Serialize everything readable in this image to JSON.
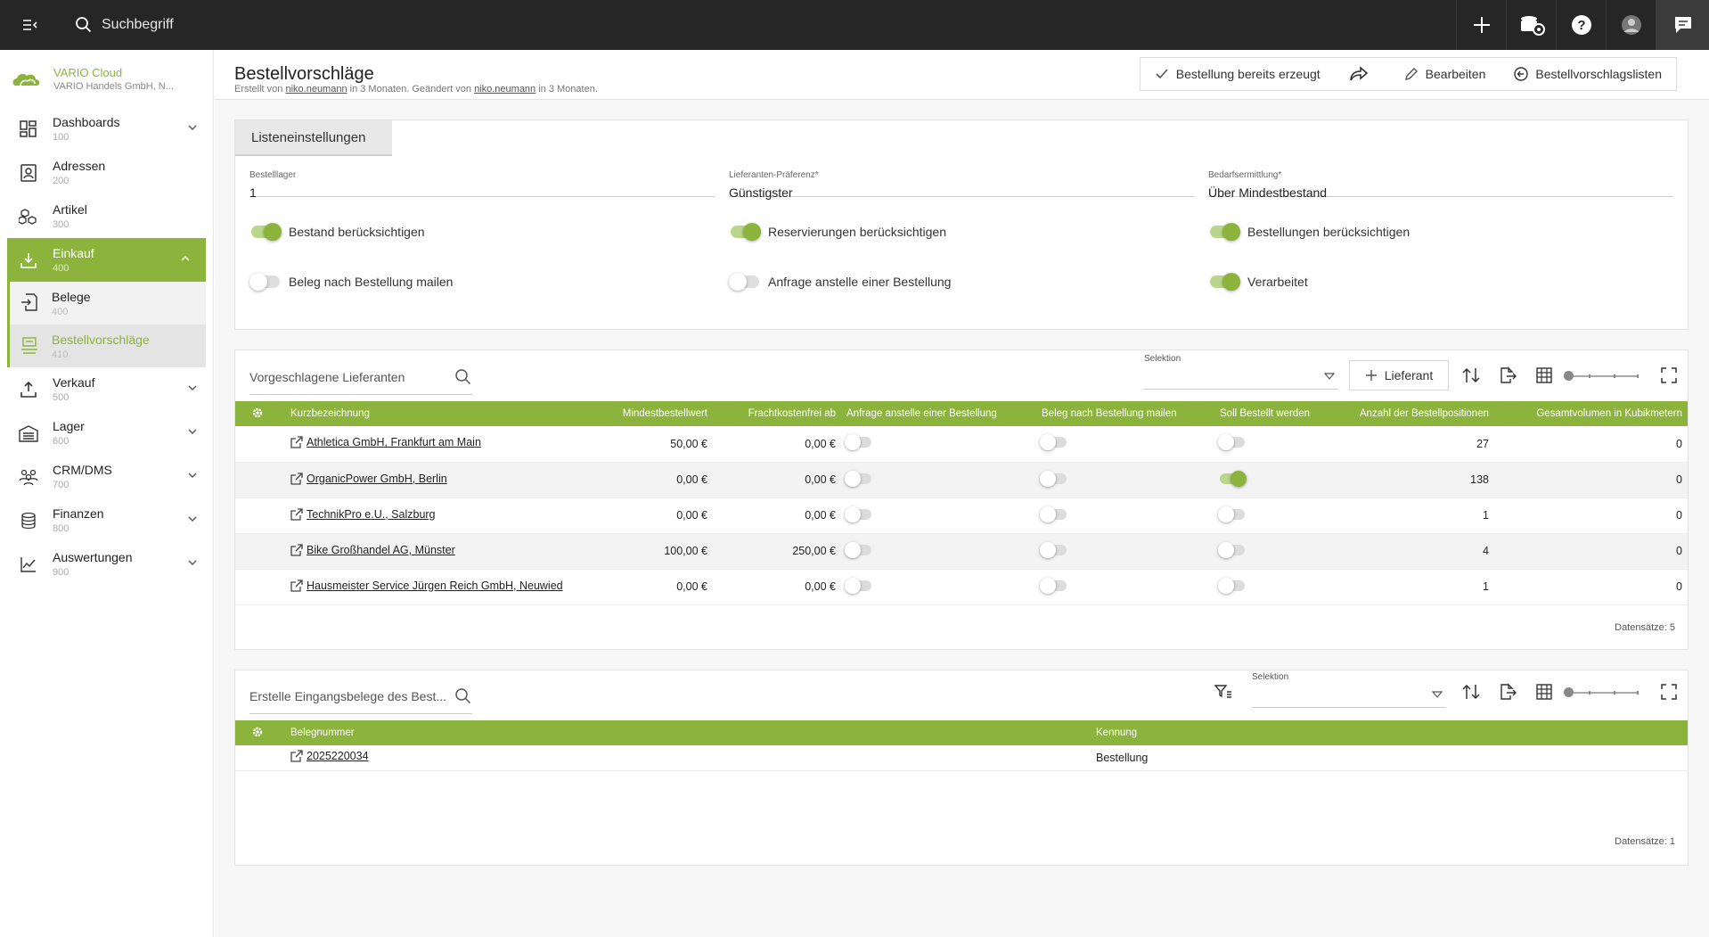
{
  "topbar": {
    "search_placeholder": "Suchbegriff"
  },
  "brand": {
    "name": "VARIO Cloud",
    "company": "VARIO Handels GmbH, N..."
  },
  "sidebar": {
    "items": [
      {
        "label": "Dashboards",
        "num": "100"
      },
      {
        "label": "Adressen",
        "num": "200"
      },
      {
        "label": "Artikel",
        "num": "300"
      },
      {
        "label": "Einkauf",
        "num": "400"
      },
      {
        "label": "Verkauf",
        "num": "500"
      },
      {
        "label": "Lager",
        "num": "600"
      },
      {
        "label": "CRM/DMS",
        "num": "700"
      },
      {
        "label": "Finanzen",
        "num": "800"
      },
      {
        "label": "Auswertungen",
        "num": "900"
      }
    ],
    "sub": [
      {
        "label": "Belege",
        "num": "400"
      },
      {
        "label": "Bestellvorschläge",
        "num": "410"
      }
    ]
  },
  "page": {
    "title": "Bestellvorschläge",
    "sub_prefix": "Erstellt von ",
    "created_by": "niko.neumann",
    "sub_mid": " in 3 Monaten. Geändert von ",
    "changed_by": "niko.neumann",
    "sub_suffix": " in 3 Monaten."
  },
  "toolbar": {
    "created": "Bestellung bereits erzeugt",
    "edit": "Bearbeiten",
    "lists": "Bestellvorschlagslisten"
  },
  "settings": {
    "tab": "Listeneinstellungen",
    "fields": [
      {
        "label": "Bestelllager",
        "value": "1"
      },
      {
        "label": "Lieferanten-Präferenz*",
        "value": "Günstigster"
      },
      {
        "label": "Bedarfsermittlung*",
        "value": "Über Mindestbestand"
      }
    ],
    "toggles": [
      {
        "label": "Bestand berücksichtigen",
        "on": true
      },
      {
        "label": "Reservierungen berücksichtigen",
        "on": true
      },
      {
        "label": "Bestellungen berücksichtigen",
        "on": true
      },
      {
        "label": "Beleg nach Bestellung mailen",
        "on": false
      },
      {
        "label": "Anfrage anstelle einer Bestellung",
        "on": false
      },
      {
        "label": "Verarbeitet",
        "on": true
      }
    ]
  },
  "suppliers": {
    "search_placeholder": "Vorgeschlagene Lieferanten",
    "selektion_label": "Selektion",
    "add_label": "Lieferant",
    "columns": [
      "Kurzbezeichnung",
      "Mindestbestellwert",
      "Frachtkostenfrei ab",
      "Anfrage anstelle einer Bestellung",
      "Beleg nach Bestellung mailen",
      "Soll Bestellt werden",
      "Anzahl der Bestellpositionen",
      "Gesamtvolumen in Kubikmetern"
    ],
    "rows": [
      {
        "name": "Athletica GmbH, Frankfurt am Main",
        "min": "50,00 €",
        "free": "0,00 €",
        "anfrage": false,
        "mail": false,
        "soll": false,
        "count": "27",
        "vol": "0"
      },
      {
        "name": "OrganicPower GmbH, Berlin",
        "min": "0,00 €",
        "free": "0,00 €",
        "anfrage": false,
        "mail": false,
        "soll": true,
        "count": "138",
        "vol": "0"
      },
      {
        "name": "TechnikPro e.U., Salzburg",
        "min": "0,00 €",
        "free": "0,00 €",
        "anfrage": false,
        "mail": false,
        "soll": false,
        "count": "1",
        "vol": "0"
      },
      {
        "name": "Bike Großhandel AG, Münster",
        "min": "100,00 €",
        "free": "250,00 €",
        "anfrage": false,
        "mail": false,
        "soll": false,
        "count": "4",
        "vol": "0"
      },
      {
        "name": "Hausmeister Service Jürgen Reich GmbH, Neuwied",
        "min": "0,00 €",
        "free": "0,00 €",
        "anfrage": false,
        "mail": false,
        "soll": false,
        "count": "1",
        "vol": "0"
      }
    ],
    "count_label": "Datensätze: 5"
  },
  "documents": {
    "search_placeholder": "Erstelle Eingangsbelege des Best...",
    "selektion_label": "Selektion",
    "columns": [
      "Belegnummer",
      "Kennung"
    ],
    "rows": [
      {
        "number": "2025220034",
        "kennung": "Bestellung"
      }
    ],
    "count_label": "Datensätze: 1"
  },
  "colors": {
    "accent": "#8cb43c",
    "topbar": "#262626"
  }
}
